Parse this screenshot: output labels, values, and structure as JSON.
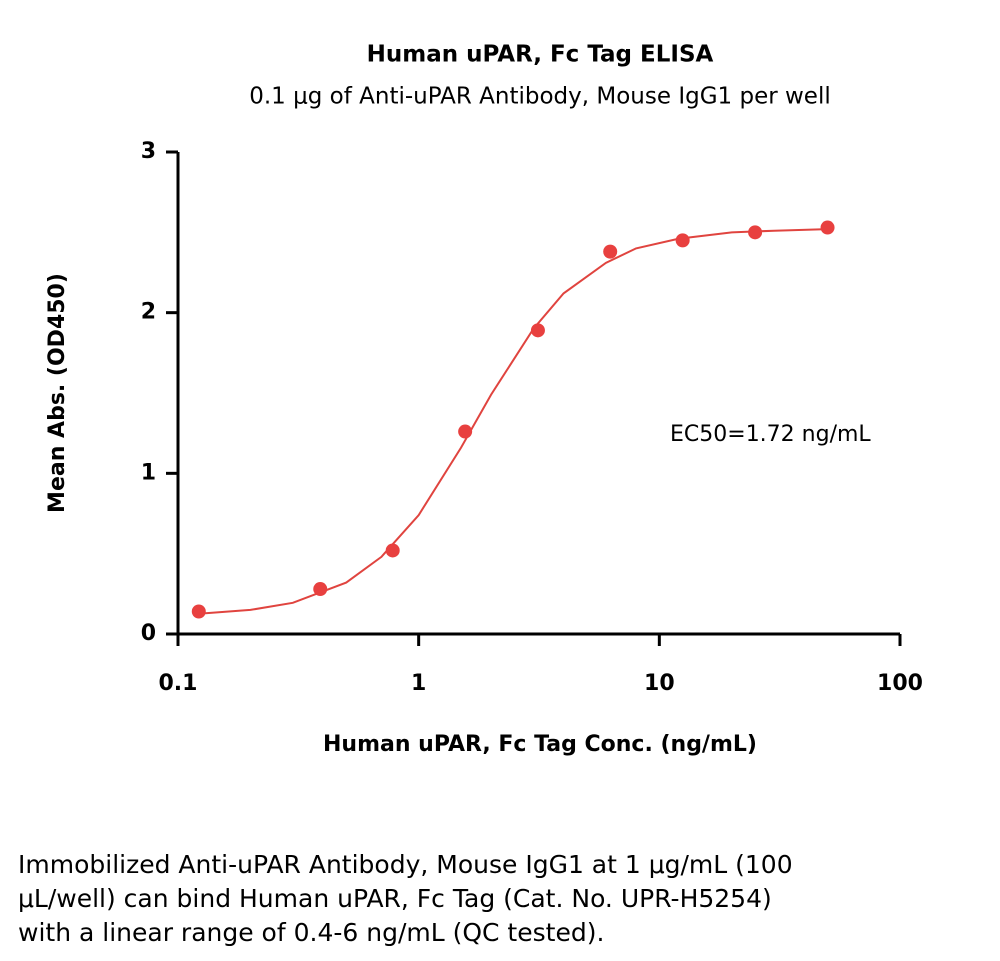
{
  "chart_data": {
    "type": "scatter",
    "title": "Human uPAR, Fc Tag ELISA",
    "subtitle": "0.1 μg of Anti-uPAR Antibody, Mouse IgG1 per well",
    "x_label": "Human uPAR, Fc Tag Conc. (ng/mL)",
    "y_label": "Mean Abs. (OD450)",
    "annotation": "EC50=1.72 ng/mL",
    "x_scale": "log",
    "xlim": [
      0.1,
      100
    ],
    "xticks": [
      0.1,
      1,
      10,
      100
    ],
    "ylim": [
      0,
      3
    ],
    "yticks": [
      0,
      1,
      2,
      3
    ],
    "color": "#e8403f",
    "x": [
      0.122,
      0.39,
      0.78,
      1.56,
      3.13,
      6.25,
      12.5,
      25,
      50
    ],
    "values": [
      0.14,
      0.28,
      0.52,
      1.26,
      1.89,
      2.38,
      2.45,
      2.5,
      2.53
    ],
    "fit": {
      "color": "#e0443f",
      "x": [
        0.122,
        0.2,
        0.3,
        0.5,
        0.7,
        1,
        1.5,
        2,
        3,
        4,
        6,
        8,
        12,
        20,
        30,
        50
      ],
      "values": [
        0.126,
        0.15,
        0.194,
        0.32,
        0.48,
        0.74,
        1.16,
        1.49,
        1.9,
        2.12,
        2.31,
        2.4,
        2.46,
        2.5,
        2.51,
        2.52
      ]
    }
  },
  "caption": {
    "lines": [
      "Immobilized Anti-uPAR Antibody, Mouse IgG1 at 1 μg/mL (100",
      "μL/well) can bind Human uPAR, Fc Tag (Cat. No. UPR-H5254)",
      "with a linear range of 0.4-6 ng/mL (QC tested)."
    ]
  }
}
